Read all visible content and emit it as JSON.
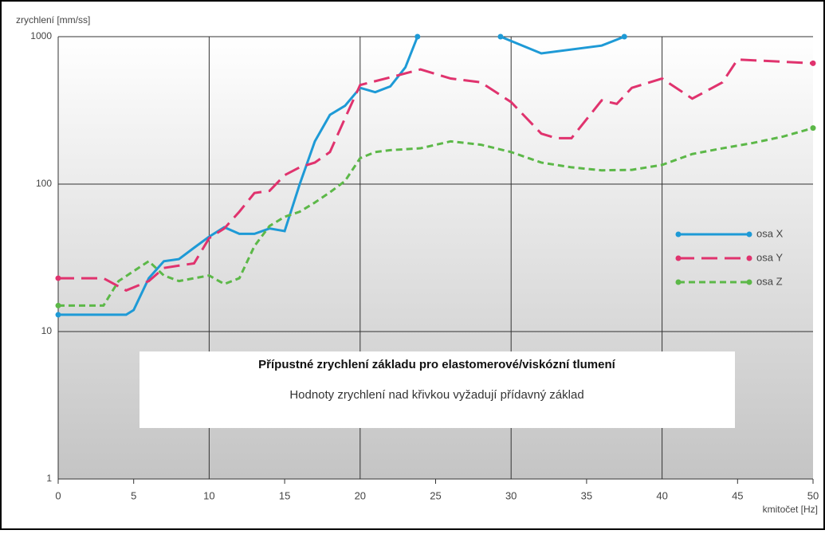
{
  "chart_data": {
    "type": "line",
    "ylabel": "zrychlení [mm/ss]",
    "xlabel": "kmitočet [Hz]",
    "annotation_title": "Přípustné zrychlení základu pro elastomerové/viskózní tlumení",
    "annotation_text": "Hodnoty zrychlení nad křivkou vyžadují přídavný základ",
    "xlim": [
      0,
      50
    ],
    "xticks": [
      0,
      5,
      10,
      15,
      20,
      25,
      30,
      35,
      40,
      45,
      50
    ],
    "ylim": [
      1,
      1000
    ],
    "yticks": [
      1,
      10,
      100,
      1000
    ],
    "yscale": "log",
    "grid": true,
    "legend": "right",
    "series": [
      {
        "name": "osa X",
        "color": "#1e9ad6",
        "linestyle": "solid",
        "x": [
          0,
          4.5,
          5,
          6,
          7,
          8,
          9,
          10,
          11,
          12,
          13,
          14,
          15,
          16,
          17,
          18,
          19,
          20,
          21,
          22,
          23,
          23.8,
          26,
          29.3,
          32,
          36,
          37.5
        ],
        "values": [
          13,
          13,
          14,
          23,
          30,
          31,
          37,
          44,
          51,
          46,
          46,
          50,
          48,
          100,
          195,
          295,
          340,
          450,
          420,
          460,
          620,
          1000,
          null,
          1000,
          770,
          870,
          1000
        ]
      },
      {
        "name": "osa Y",
        "color": "#e0336e",
        "linestyle": "dashed",
        "x": [
          0,
          3,
          4.5,
          6,
          7,
          8,
          9,
          10,
          11,
          12,
          13,
          14,
          15,
          16,
          17,
          18,
          19,
          20,
          22,
          24,
          26,
          28,
          30,
          32,
          33,
          34,
          36,
          37,
          38,
          40,
          42,
          44,
          45,
          50
        ],
        "values": [
          23,
          23,
          19,
          22,
          27,
          28,
          29,
          43,
          50,
          65,
          87,
          90,
          115,
          130,
          140,
          165,
          280,
          470,
          530,
          600,
          520,
          490,
          360,
          220,
          205,
          205,
          370,
          350,
          450,
          520,
          380,
          490,
          700,
          660
        ]
      },
      {
        "name": "osa Z",
        "color": "#5cb848",
        "linestyle": "dotted",
        "x": [
          0,
          3,
          4,
          6,
          7,
          8,
          9,
          10,
          11,
          12,
          13,
          14,
          15,
          16,
          17,
          18,
          19,
          20,
          21,
          22,
          24,
          26,
          28,
          30,
          32,
          34,
          36,
          38,
          40,
          42,
          44,
          46,
          48,
          50
        ],
        "values": [
          15,
          15,
          22,
          30,
          24,
          22,
          23,
          24,
          21,
          23,
          38,
          52,
          60,
          65,
          75,
          88,
          105,
          150,
          165,
          170,
          175,
          195,
          185,
          165,
          140,
          130,
          124,
          125,
          135,
          160,
          175,
          190,
          210,
          240
        ]
      }
    ]
  }
}
